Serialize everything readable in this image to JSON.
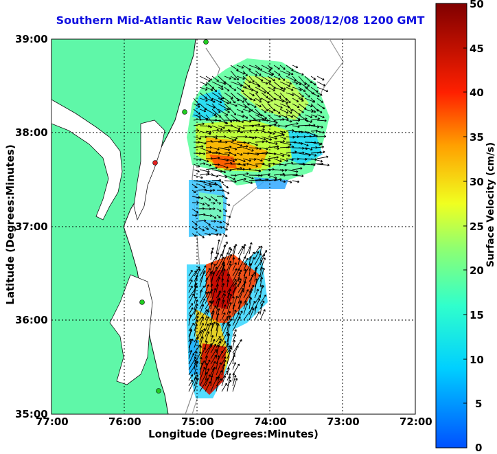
{
  "title": "Southern Mid-Atlantic Raw Velocities 2008/12/08 1200 GMT",
  "axes": {
    "xlabel": "Longitude (Degrees:Minutes)",
    "ylabel": "Latitude (Degrees:Minutes)",
    "xticks": [
      "77:00",
      "76:00",
      "75:00",
      "74:00",
      "73:00",
      "72:00"
    ],
    "yticks": [
      "39:00",
      "38:00",
      "37:00",
      "36:00",
      "35:00"
    ],
    "lon_range": [
      -77,
      -72
    ],
    "lat_range": [
      35,
      39
    ]
  },
  "colorbar": {
    "label": "Surface Velocity (cm/s)",
    "ticks": [
      "50",
      "45",
      "40",
      "35",
      "30",
      "25",
      "20",
      "15",
      "10",
      "5",
      "0"
    ],
    "range": [
      0,
      50
    ]
  },
  "colors": {
    "title": "#1010e0",
    "land": "#5ff7a8",
    "station": "#22cc22",
    "station_alt": "#e02020"
  }
}
